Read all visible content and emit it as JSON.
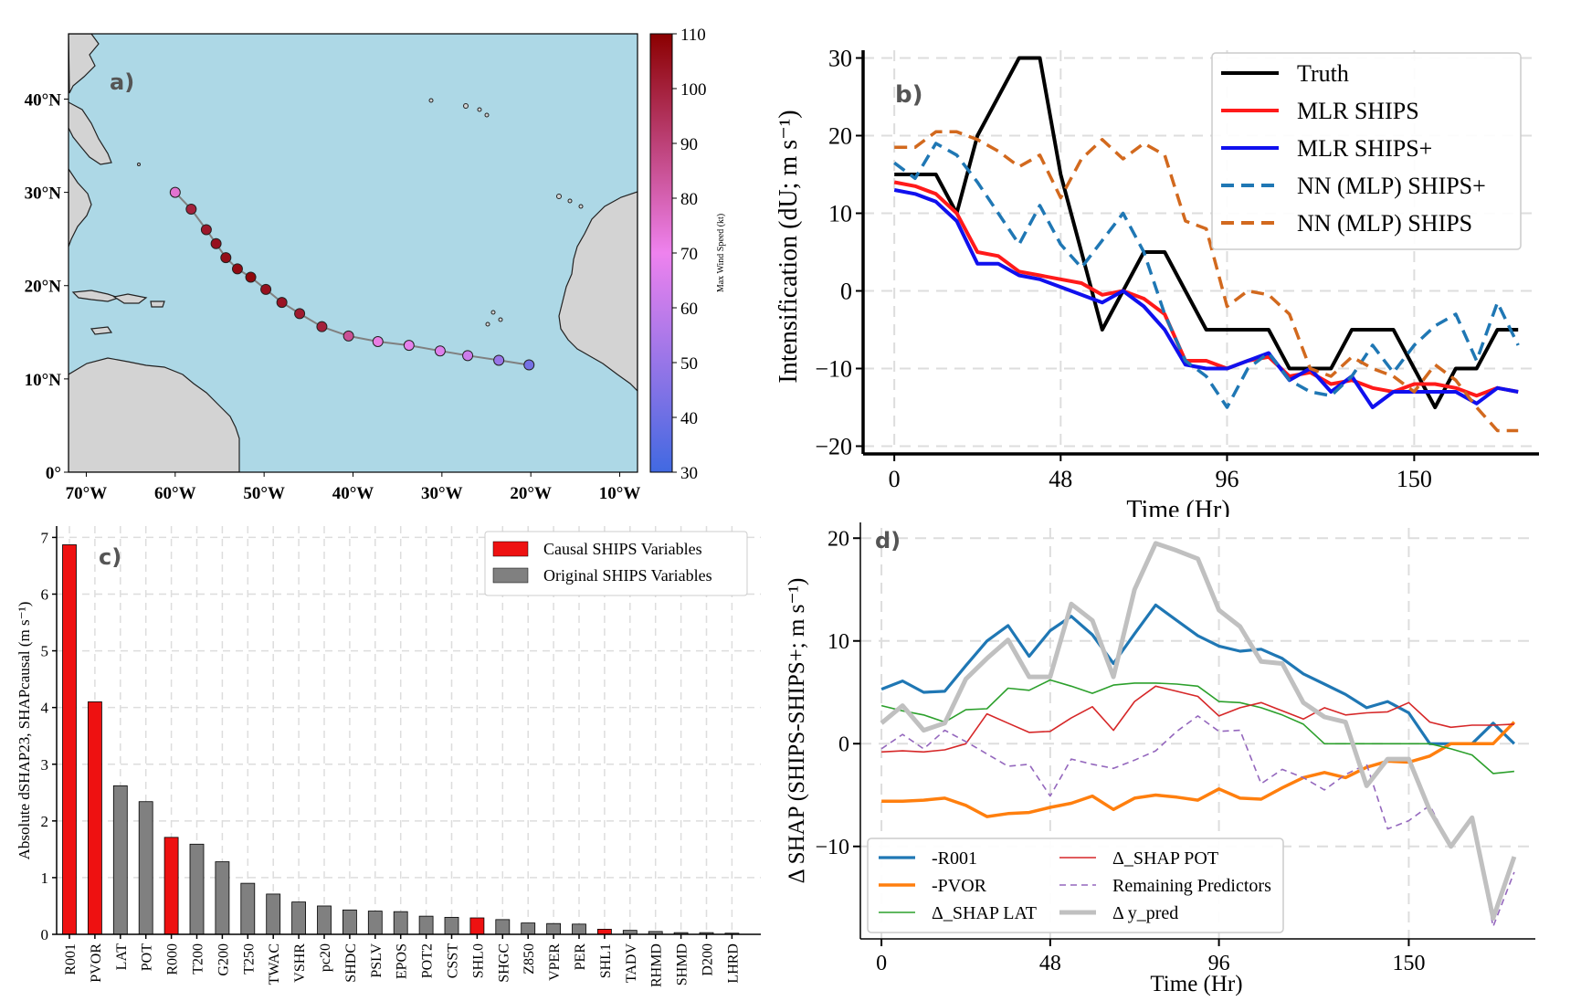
{
  "colors": {
    "ocean": "#add8e6",
    "land": "#d3d3d3",
    "truth": "#000000",
    "mlr": "#ff1a1a",
    "mlr_plus": "#1010ee",
    "nn_plus": "#1f77b4",
    "nn": "#d2691e",
    "causal_bar": "#ee1111",
    "orig_bar": "#808080",
    "r001": "#1f77b4",
    "pvor": "#ff7f0e",
    "lat": "#2ca02c",
    "pot": "#d62728",
    "remaining": "#9467bd",
    "ypred": "#c0c0c0"
  },
  "chart_data": [
    {
      "panel": "a)",
      "type": "scatter",
      "title": "",
      "xticklabels": [
        "70°W",
        "60°W",
        "50°W",
        "40°W",
        "30°W",
        "20°W",
        "10°W"
      ],
      "yticklabels": [
        "40°N",
        "30°N",
        "20°N",
        "10°N",
        "0°"
      ],
      "xlim": [
        -72,
        -8
      ],
      "ylim": [
        0,
        47
      ],
      "track_lon": [
        -60.0,
        -58.2,
        -56.5,
        -55.4,
        -54.3,
        -53.0,
        -51.5,
        -49.8,
        -48.0,
        -46.0,
        -43.5,
        -40.5,
        -37.2,
        -33.7,
        -30.2,
        -27.1,
        -23.6,
        -20.2
      ],
      "track_lat": [
        30.0,
        28.2,
        26.0,
        24.5,
        23.0,
        21.8,
        20.9,
        19.6,
        18.2,
        17.0,
        15.6,
        14.6,
        14.0,
        13.6,
        13.0,
        12.5,
        12.0,
        11.5
      ],
      "track_wind": [
        75,
        100,
        103,
        105,
        106,
        107,
        108,
        105,
        104,
        102,
        100,
        85,
        72,
        68,
        66,
        62,
        50,
        42
      ],
      "colorbar": {
        "label": "Max Wind Speed (kt)",
        "min": 30,
        "max": 110,
        "ticks": [
          "110",
          "100",
          "90",
          "80",
          "70",
          "60",
          "50",
          "40",
          "30"
        ]
      }
    },
    {
      "panel": "b)",
      "type": "line",
      "xlabel": "Time (Hr)",
      "ylabel": "Intensification (dU; m s⁻¹)",
      "xlim": [
        -9,
        186
      ],
      "ylim": [
        -21,
        31
      ],
      "xticks": [
        0,
        48,
        96,
        150
      ],
      "yticks": [
        -20,
        -10,
        0,
        10,
        20,
        30
      ],
      "x": [
        0,
        6,
        12,
        18,
        24,
        30,
        36,
        42,
        48,
        54,
        60,
        66,
        72,
        78,
        84,
        90,
        96,
        102,
        108,
        114,
        120,
        126,
        132,
        138,
        144,
        150,
        156,
        162,
        168,
        174,
        180
      ],
      "series": [
        {
          "name": "Truth",
          "style": "solid",
          "values": [
            15,
            15,
            15,
            10,
            20,
            25,
            30,
            30,
            15,
            5,
            -5,
            0,
            5,
            5,
            0,
            -5,
            -5,
            -5,
            -5,
            -10,
            -10,
            -10,
            -5,
            -5,
            -5,
            -10,
            -15,
            -10,
            -10,
            -5,
            -5
          ]
        },
        {
          "name": "MLR SHIPS",
          "style": "solid",
          "values": [
            14,
            13.5,
            12.5,
            10,
            5,
            4.5,
            2.5,
            2,
            1.5,
            1,
            -0.5,
            0,
            -1,
            -3,
            -9,
            -9,
            -10,
            -9,
            -8.5,
            -11,
            -10.5,
            -12,
            -11.5,
            -12.5,
            -13,
            -12,
            -12,
            -12.5,
            -13.5,
            -12.5,
            -13
          ]
        },
        {
          "name": "MLR SHIPS+",
          "style": "solid",
          "values": [
            13,
            12.5,
            11.5,
            9,
            3.5,
            3.5,
            2,
            1.5,
            0.5,
            -0.5,
            -1.5,
            0,
            -2,
            -5,
            -9.5,
            -10,
            -10,
            -9,
            -8,
            -11.5,
            -10,
            -13,
            -11,
            -15,
            -13,
            -13,
            -13,
            -13,
            -14.5,
            -12.5,
            -13
          ]
        },
        {
          "name": "NN (MLP) SHIPS+",
          "style": "dashed",
          "values": [
            16.5,
            14.5,
            19,
            17.5,
            14,
            10,
            6,
            11,
            6,
            3,
            6.5,
            10,
            5,
            -3,
            -9,
            -11,
            -15,
            -10,
            -8,
            -11.5,
            -13,
            -13.5,
            -11,
            -7,
            -10.5,
            -7,
            -4.5,
            -3,
            -9,
            -1.5,
            -7
          ]
        },
        {
          "name": "NN (MLP) SHIPS",
          "style": "dashed",
          "values": [
            18.5,
            18.5,
            20.5,
            20.5,
            19.5,
            18,
            16,
            17.5,
            12,
            17,
            19.5,
            17,
            19,
            17.5,
            9,
            8,
            -2,
            0,
            -0.5,
            -3,
            -10,
            -11,
            -8.5,
            -10,
            -11,
            -13,
            -9.5,
            -11.5,
            -15,
            -18,
            -18
          ]
        }
      ]
    },
    {
      "panel": "c)",
      "type": "bar",
      "ylabel": "Absolute dSHAP23, SHAPcausal (m s⁻¹)",
      "ylim": [
        0,
        7.2
      ],
      "yticks": [
        0,
        1,
        2,
        3,
        4,
        5,
        6,
        7
      ],
      "categories": [
        "R001",
        "PVOR",
        "LAT",
        "POT",
        "R000",
        "T200",
        "G200",
        "T250",
        "TWAC",
        "VSHR",
        "pc20",
        "SHDC",
        "PSLV",
        "EPOS",
        "POT2",
        "CSST",
        "SHL0",
        "SHGC",
        "Z850",
        "VPER",
        "PER",
        "SHL1",
        "TADV",
        "RHMD",
        "SHMD",
        "D200",
        "LHRD"
      ],
      "values": [
        6.87,
        4.1,
        2.62,
        2.34,
        1.71,
        1.59,
        1.28,
        0.9,
        0.71,
        0.57,
        0.5,
        0.43,
        0.41,
        0.4,
        0.32,
        0.3,
        0.29,
        0.26,
        0.2,
        0.19,
        0.18,
        0.09,
        0.07,
        0.05,
        0.03,
        0.03,
        0.02
      ],
      "causal": [
        true,
        true,
        false,
        false,
        true,
        false,
        false,
        false,
        false,
        false,
        false,
        false,
        false,
        false,
        false,
        false,
        true,
        false,
        false,
        false,
        false,
        true,
        false,
        false,
        false,
        false,
        false
      ],
      "legend": [
        "Causal SHIPS Variables",
        "Original SHIPS Variables"
      ]
    },
    {
      "panel": "d)",
      "type": "line",
      "xlabel": "Time (Hr)",
      "ylabel": "Δ SHAP (SHIPS-SHIPS+; m s⁻¹)",
      "xlim": [
        -6,
        186
      ],
      "ylim": [
        -19,
        21
      ],
      "xticks": [
        0,
        48,
        96,
        150
      ],
      "yticks": [
        -10,
        0,
        10,
        20
      ],
      "x": [
        0,
        6,
        12,
        18,
        24,
        30,
        36,
        42,
        48,
        54,
        60,
        66,
        72,
        78,
        84,
        90,
        96,
        102,
        108,
        114,
        120,
        126,
        132,
        138,
        144,
        150,
        156,
        162,
        168,
        174,
        180
      ],
      "series": [
        {
          "name": "-R001",
          "values": [
            5.3,
            6.1,
            5.0,
            5.1,
            7.6,
            10.0,
            11.5,
            8.5,
            11.0,
            12.4,
            10.6,
            7.8,
            10.7,
            13.5,
            12.0,
            10.5,
            9.5,
            9.0,
            9.2,
            8.3,
            6.8,
            5.8,
            4.8,
            3.5,
            4.1,
            3.0,
            0.0,
            0.0,
            0.0,
            2.0,
            0.0
          ]
        },
        {
          "name": "-PVOR",
          "values": [
            -5.6,
            -5.6,
            -5.5,
            -5.3,
            -6.0,
            -7.1,
            -6.8,
            -6.7,
            -6.2,
            -5.8,
            -5.1,
            -6.4,
            -5.3,
            -5.0,
            -5.2,
            -5.5,
            -4.4,
            -5.3,
            -5.4,
            -4.3,
            -3.3,
            -2.8,
            -3.3,
            -2.3,
            -1.7,
            -1.8,
            -1.2,
            0.0,
            0.0,
            0.0,
            2.1
          ]
        },
        {
          "name": "Δ_SHAP LAT",
          "values": [
            3.7,
            3.2,
            2.8,
            2.1,
            3.3,
            3.4,
            5.4,
            5.2,
            6.2,
            5.6,
            4.9,
            5.7,
            5.9,
            5.9,
            5.8,
            5.6,
            4.1,
            4.0,
            3.5,
            2.8,
            1.9,
            0.0,
            0.0,
            0.0,
            0.0,
            0.0,
            0.0,
            -0.5,
            -1.1,
            -2.9,
            -2.7
          ]
        },
        {
          "name": "Δ_SHAP POT",
          "values": [
            -0.8,
            -0.7,
            -0.8,
            -0.6,
            0.0,
            2.9,
            2.0,
            1.1,
            1.2,
            2.5,
            3.6,
            1.3,
            4.1,
            5.6,
            5.1,
            4.6,
            2.7,
            3.5,
            4.0,
            3.2,
            2.4,
            3.5,
            2.8,
            3.0,
            3.1,
            4.0,
            2.1,
            1.6,
            1.8,
            1.8,
            1.9
          ]
        },
        {
          "name": "Remaining Predictors",
          "values": [
            -0.5,
            0.9,
            -0.5,
            1.3,
            0.2,
            -1.0,
            -2.2,
            -2.0,
            -5.1,
            -1.5,
            -2.0,
            -2.4,
            -1.6,
            -0.7,
            1.2,
            2.7,
            1.2,
            1.3,
            -3.9,
            -2.5,
            -3.3,
            -4.5,
            -3.0,
            -2.0,
            -8.3,
            -7.5,
            -6.0,
            -10.0,
            -7.4,
            -17.8,
            -12.5
          ]
        },
        {
          "name": "Δ y_pred",
          "values": [
            2.0,
            3.7,
            1.3,
            2.0,
            6.3,
            8.3,
            10.1,
            6.5,
            6.5,
            13.6,
            12.0,
            6.5,
            15.0,
            19.5,
            18.8,
            18.0,
            13.0,
            11.4,
            8.0,
            7.8,
            4.0,
            2.6,
            2.1,
            -4.1,
            -1.5,
            -1.5,
            -6.5,
            -10.0,
            -7.2,
            -17.0,
            -11.0
          ]
        }
      ]
    }
  ]
}
